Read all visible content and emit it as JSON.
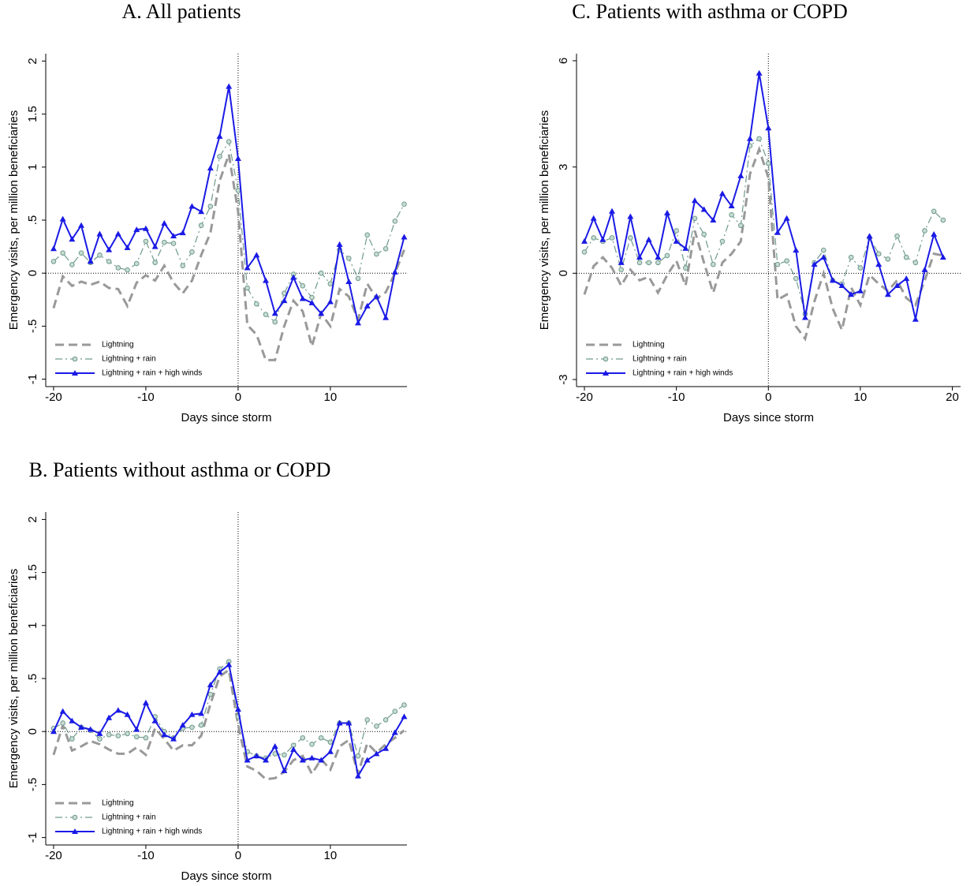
{
  "chart_data": [
    {
      "type": "line",
      "title": "A. All patients",
      "xlabel": "Days since storm",
      "ylabel": "Emergency visits, per million beneficiaries",
      "x": [
        -20,
        -19,
        -18,
        -17,
        -16,
        -15,
        -14,
        -13,
        -12,
        -11,
        -10,
        -9,
        -8,
        -7,
        -6,
        -5,
        -4,
        -3,
        -2,
        -1,
        0,
        1,
        2,
        3,
        4,
        5,
        6,
        7,
        8,
        9,
        10,
        11,
        12,
        13,
        14,
        15,
        16,
        17,
        18
      ],
      "xlim": [
        -20.85,
        18.3
      ],
      "xticks": [
        -20,
        -10,
        0,
        10
      ],
      "ylim": [
        -1.07,
        2.07
      ],
      "yticks": [
        -1,
        {
          "value": -0.5,
          "label": "-.5"
        },
        0,
        {
          "value": 0.5,
          "label": ".5"
        },
        1,
        1.5,
        2
      ],
      "vline": 0,
      "hline": 0,
      "legend": "lower left",
      "series": [
        {
          "name": "Lightning",
          "color": "#999999",
          "line_style": "dashed",
          "marker": null,
          "values": [
            -0.33,
            -0.03,
            -0.12,
            -0.08,
            -0.11,
            -0.08,
            -0.14,
            -0.15,
            -0.31,
            -0.09,
            -0.02,
            -0.07,
            0.07,
            -0.09,
            -0.19,
            -0.07,
            0.17,
            0.38,
            0.87,
            1.12,
            0.58,
            -0.49,
            -0.58,
            -0.82,
            -0.82,
            -0.5,
            -0.26,
            -0.36,
            -0.69,
            -0.38,
            -0.5,
            -0.15,
            -0.22,
            -0.44,
            -0.1,
            -0.24,
            -0.18,
            0.0,
            0.22
          ]
        },
        {
          "name": "Lightning + rain",
          "color": "#6f9a8c",
          "line_style": "dash-dot",
          "marker": "circle",
          "values": [
            0.11,
            0.19,
            0.08,
            0.19,
            0.1,
            0.17,
            0.11,
            0.05,
            0.03,
            0.09,
            0.3,
            0.1,
            0.29,
            0.28,
            0.07,
            0.2,
            0.45,
            0.63,
            1.1,
            1.24,
            0.78,
            -0.14,
            -0.29,
            -0.39,
            -0.46,
            -0.19,
            -0.01,
            -0.12,
            -0.23,
            0.0,
            -0.1,
            0.22,
            0.14,
            -0.05,
            0.36,
            0.18,
            0.23,
            0.49,
            0.65
          ]
        },
        {
          "name": "Lightning + rain + high winds",
          "color": "#1a1ae6",
          "line_style": "solid",
          "marker": "triangle",
          "values": [
            0.23,
            0.51,
            0.32,
            0.45,
            0.11,
            0.37,
            0.22,
            0.37,
            0.24,
            0.41,
            0.42,
            0.25,
            0.47,
            0.35,
            0.38,
            0.63,
            0.58,
            0.99,
            1.29,
            1.76,
            1.08,
            0.05,
            0.17,
            -0.07,
            -0.38,
            -0.26,
            -0.04,
            -0.24,
            -0.28,
            -0.38,
            -0.27,
            0.27,
            -0.08,
            -0.47,
            -0.31,
            -0.22,
            -0.42,
            0.01,
            0.34
          ]
        }
      ]
    },
    {
      "type": "line",
      "title": "C. Patients with asthma or COPD",
      "xlabel": "Days since storm",
      "ylabel": "Emergency visits, per million beneficiaries",
      "x": [
        -20,
        -19,
        -18,
        -17,
        -16,
        -15,
        -14,
        -13,
        -12,
        -11,
        -10,
        -9,
        -8,
        -7,
        -6,
        -5,
        -4,
        -3,
        -2,
        -1,
        0,
        1,
        2,
        3,
        4,
        5,
        6,
        7,
        8,
        9,
        10,
        11,
        12,
        13,
        14,
        15,
        16,
        17,
        18,
        19
      ],
      "xlim": [
        -20.86,
        20.9
      ],
      "xticks": [
        -20,
        -10,
        0,
        10,
        20
      ],
      "ylim": [
        -3.2,
        6.2
      ],
      "yticks": [
        -3,
        0,
        3,
        6
      ],
      "vline": 0,
      "hline": 0,
      "legend": "lower left",
      "series": [
        {
          "name": "Lightning",
          "color": "#999999",
          "line_style": "dashed",
          "marker": null,
          "values": [
            -0.6,
            0.2,
            0.45,
            0.15,
            -0.35,
            0.1,
            -0.2,
            -0.1,
            -0.55,
            -0.05,
            0.35,
            -0.35,
            1.2,
            0.3,
            -0.55,
            0.3,
            0.55,
            0.9,
            2.8,
            3.5,
            2.7,
            -0.75,
            -0.6,
            -1.5,
            -1.85,
            -0.8,
            0.0,
            -1.0,
            -1.6,
            -0.4,
            -0.9,
            -0.05,
            -0.3,
            -0.5,
            -0.2,
            -0.7,
            -0.9,
            -0.2,
            0.55,
            0.5
          ]
        },
        {
          "name": "Lightning + rain",
          "color": "#6f9a8c",
          "line_style": "dash-dot",
          "marker": "circle",
          "values": [
            0.6,
            1.0,
            0.9,
            1.0,
            0.1,
            1.0,
            0.3,
            0.3,
            0.3,
            0.5,
            1.2,
            0.15,
            1.55,
            1.1,
            0.25,
            0.9,
            1.65,
            1.35,
            3.6,
            3.8,
            3.1,
            0.25,
            0.35,
            -0.15,
            -1.15,
            0.3,
            0.65,
            -0.2,
            -0.3,
            0.45,
            0.15,
            1.0,
            0.55,
            0.4,
            1.05,
            0.45,
            0.3,
            1.2,
            1.75,
            1.5
          ]
        },
        {
          "name": "Lightning + rain + high winds",
          "color": "#1a1ae6",
          "line_style": "solid",
          "marker": "triangle",
          "values": [
            0.9,
            1.55,
            0.95,
            1.75,
            0.3,
            1.6,
            0.45,
            0.95,
            0.45,
            1.7,
            0.9,
            0.7,
            2.05,
            1.8,
            1.5,
            2.25,
            1.9,
            2.75,
            3.8,
            5.65,
            4.1,
            1.15,
            1.55,
            0.65,
            -1.25,
            0.25,
            0.45,
            -0.2,
            -0.35,
            -0.6,
            -0.5,
            1.05,
            0.25,
            -0.6,
            -0.35,
            -0.15,
            -1.3,
            0.1,
            1.1,
            0.45
          ]
        }
      ]
    },
    {
      "type": "line",
      "title": "B. Patients without asthma or COPD",
      "xlabel": "Days since storm",
      "ylabel": "Emergency visits, per million beneficiaries",
      "x": [
        -20,
        -19,
        -18,
        -17,
        -16,
        -15,
        -14,
        -13,
        -12,
        -11,
        -10,
        -9,
        -8,
        -7,
        -6,
        -5,
        -4,
        -3,
        -2,
        -1,
        0,
        1,
        2,
        3,
        4,
        5,
        6,
        7,
        8,
        9,
        10,
        11,
        12,
        13,
        14,
        15,
        16,
        17,
        18
      ],
      "xlim": [
        -20.85,
        18.3
      ],
      "xticks": [
        -20,
        -10,
        0,
        10
      ],
      "ylim": [
        -1.07,
        2.07
      ],
      "yticks": [
        -1,
        {
          "value": -0.5,
          "label": "-.5"
        },
        0,
        {
          "value": 0.5,
          "label": ".5"
        },
        1,
        1.5,
        2
      ],
      "vline": 0,
      "hline": 0,
      "legend": "lower left",
      "series": [
        {
          "name": "Lightning",
          "color": "#999999",
          "line_style": "dashed",
          "marker": null,
          "values": [
            -0.22,
            0.06,
            -0.18,
            -0.14,
            -0.09,
            -0.12,
            -0.17,
            -0.21,
            -0.21,
            -0.15,
            -0.22,
            0.03,
            -0.07,
            -0.18,
            -0.13,
            -0.13,
            -0.04,
            0.26,
            0.52,
            0.58,
            0.06,
            -0.33,
            -0.37,
            -0.45,
            -0.44,
            -0.38,
            -0.27,
            -0.23,
            -0.4,
            -0.26,
            -0.36,
            -0.14,
            -0.08,
            -0.4,
            -0.11,
            -0.2,
            -0.12,
            -0.06,
            0.01
          ]
        },
        {
          "name": "Lightning + rain",
          "color": "#6f9a8c",
          "line_style": "dash-dot",
          "marker": "circle",
          "values": [
            0.03,
            0.08,
            -0.07,
            0.04,
            0.01,
            -0.07,
            -0.03,
            -0.04,
            -0.02,
            -0.05,
            -0.06,
            0.14,
            0.0,
            -0.06,
            0.03,
            0.04,
            0.06,
            0.35,
            0.59,
            0.66,
            0.14,
            -0.19,
            -0.23,
            -0.25,
            -0.21,
            -0.22,
            -0.13,
            -0.06,
            -0.12,
            -0.06,
            -0.1,
            0.08,
            0.08,
            -0.23,
            0.11,
            0.05,
            0.11,
            0.19,
            0.25
          ]
        },
        {
          "name": "Lightning + rain + high winds",
          "color": "#1a1ae6",
          "line_style": "solid",
          "marker": "triangle",
          "values": [
            0.0,
            0.19,
            0.1,
            0.04,
            0.02,
            -0.02,
            0.13,
            0.2,
            0.16,
            0.02,
            0.27,
            0.1,
            -0.03,
            -0.07,
            0.06,
            0.16,
            0.17,
            0.44,
            0.56,
            0.63,
            0.21,
            -0.27,
            -0.23,
            -0.27,
            -0.14,
            -0.37,
            -0.17,
            -0.27,
            -0.25,
            -0.27,
            -0.19,
            0.08,
            0.08,
            -0.42,
            -0.27,
            -0.21,
            -0.16,
            -0.01,
            0.14
          ]
        }
      ]
    }
  ]
}
